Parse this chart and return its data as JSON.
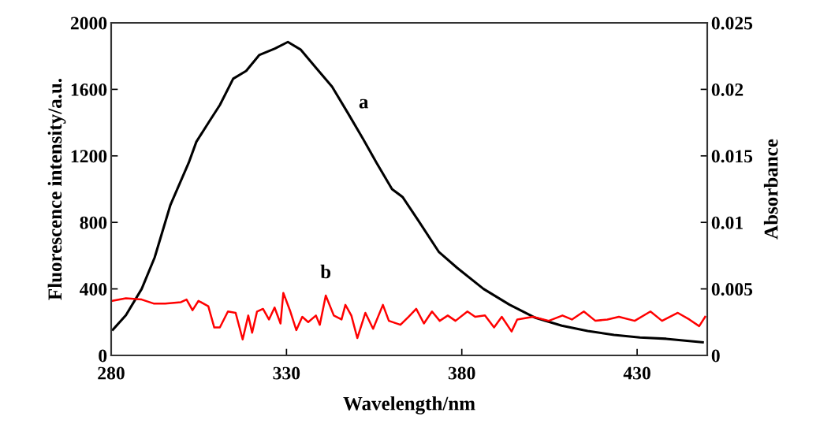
{
  "chart_data": {
    "type": "line",
    "xlabel": "Wavelength/nm",
    "ylabel": "Fluorescence intensity/a.u.",
    "y2label": "Absorbance",
    "xlim": [
      280,
      450
    ],
    "xticks": [
      280,
      330,
      380,
      430
    ],
    "ylim": [
      0,
      2000
    ],
    "yticks": [
      0,
      400,
      800,
      1200,
      1600,
      2000
    ],
    "y2lim": [
      0,
      0.025
    ],
    "y2ticks": [
      0,
      0.005,
      0.01,
      0.015,
      0.02,
      0.025
    ],
    "grid": false,
    "legend": false,
    "marker": "none",
    "line_style": "solid",
    "series": [
      {
        "name": "a",
        "color": "#000000",
        "x": [
          280.5,
          284.2,
          288.7,
          292.4,
          296.9,
          302.1,
          304.3,
          308.1,
          311,
          314.8,
          318.5,
          322.2,
          326.7,
          330.4,
          334.1,
          338.5,
          343,
          347.5,
          351.9,
          355.7,
          360.1,
          363.1,
          367.6,
          373.5,
          378.7,
          386.2,
          393.6,
          401,
          408.5,
          415.9,
          423.4,
          430.8,
          438.3,
          448.7
        ],
        "values": [
          155,
          242,
          400,
          589,
          905,
          1158,
          1285,
          1411,
          1506,
          1664,
          1711,
          1806,
          1845,
          1885,
          1838,
          1727,
          1616,
          1458,
          1300,
          1158,
          1000,
          953,
          811,
          621,
          526,
          400,
          305,
          226,
          179,
          147,
          123,
          108,
          100,
          79
        ]
      },
      {
        "name": "b",
        "color": "#ff0000",
        "axis": "y2",
        "x": [
          280.3,
          284.2,
          288.7,
          292.1,
          295.4,
          299.9,
          301.5,
          303.2,
          304.9,
          307.7,
          309.4,
          311,
          313.3,
          315.5,
          317.5,
          319.1,
          320.2,
          321.6,
          323.3,
          325,
          326.6,
          328.3,
          329.1,
          331.1,
          332.8,
          334.5,
          336.2,
          338.4,
          339.5,
          341.2,
          343.5,
          345.7,
          346.8,
          348.5,
          350.2,
          352.5,
          354.7,
          357.5,
          359.2,
          362.5,
          364.8,
          367,
          369.2,
          371.5,
          373.7,
          376,
          378.2,
          381.6,
          383.8,
          386.6,
          389.2,
          391.4,
          394.2,
          395.8,
          400.3,
          404.8,
          408.7,
          411.4,
          414.8,
          418.1,
          421.5,
          424.8,
          429.3,
          433.8,
          437.1,
          441.6,
          444.9,
          447.7,
          449.4
        ],
        "values": [
          0.0041,
          0.0043,
          0.0042,
          0.0039,
          0.0039,
          0.004,
          0.0042,
          0.0034,
          0.0041,
          0.0037,
          0.0021,
          0.0021,
          0.0033,
          0.0032,
          0.0012,
          0.003,
          0.0017,
          0.0033,
          0.0035,
          0.0027,
          0.0036,
          0.0024,
          0.0047,
          0.0033,
          0.0019,
          0.0029,
          0.0025,
          0.003,
          0.0023,
          0.0045,
          0.003,
          0.0027,
          0.0038,
          0.003,
          0.0013,
          0.0032,
          0.002,
          0.0038,
          0.0026,
          0.0023,
          0.0029,
          0.0035,
          0.0024,
          0.0033,
          0.0026,
          0.003,
          0.0026,
          0.0033,
          0.0029,
          0.003,
          0.0021,
          0.0029,
          0.0018,
          0.0027,
          0.0029,
          0.0026,
          0.003,
          0.0027,
          0.0033,
          0.0026,
          0.0027,
          0.0029,
          0.0026,
          0.0033,
          0.0026,
          0.0032,
          0.0027,
          0.0022,
          0.0029
        ]
      }
    ]
  }
}
